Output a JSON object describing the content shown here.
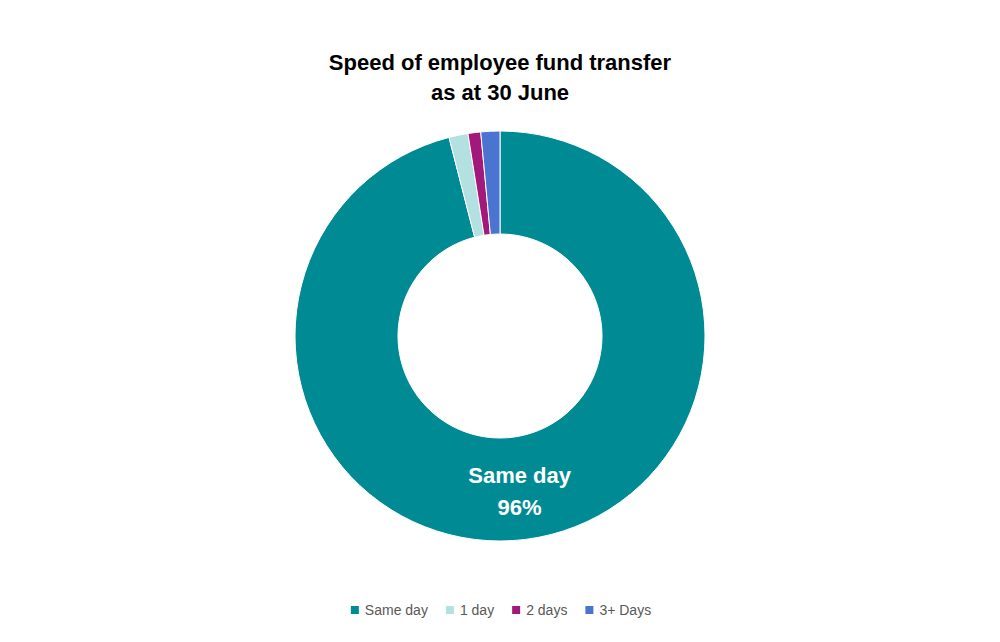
{
  "chart_data": {
    "type": "pie",
    "title": "Speed of employee fund transfer\nas at 30 June",
    "categories": [
      "Same day",
      "1 day",
      "2 days",
      "3+ Days"
    ],
    "values": [
      96,
      1.5,
      1,
      1.5
    ],
    "value_labels": [
      "96%",
      null,
      null,
      null
    ],
    "colors": [
      "#008b94",
      "#b3e0e0",
      "#a3197b",
      "#4a74cf"
    ],
    "data_labels": true,
    "legend": "bottom"
  }
}
